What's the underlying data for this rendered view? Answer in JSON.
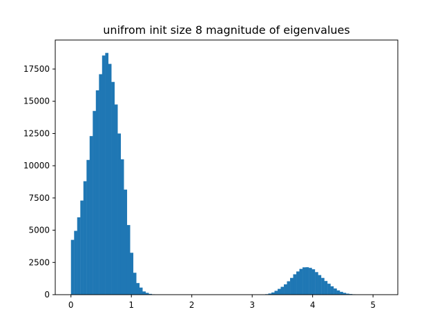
{
  "chart_data": {
    "type": "bar",
    "title": "unifrom init size 8 magnitude of eigenvalues",
    "xlabel": "",
    "ylabel": "",
    "xlim": [
      -0.26,
      5.41
    ],
    "ylim": [
      0,
      19750
    ],
    "grid": false,
    "bar_color": "#1f77b4",
    "bin_width": 0.0515,
    "x_ticks": [
      {
        "value": 0,
        "label": "0"
      },
      {
        "value": 1,
        "label": "1"
      },
      {
        "value": 2,
        "label": "2"
      },
      {
        "value": 3,
        "label": "3"
      },
      {
        "value": 4,
        "label": "4"
      },
      {
        "value": 5,
        "label": "5"
      }
    ],
    "y_ticks": [
      {
        "value": 0,
        "label": "0"
      },
      {
        "value": 2500,
        "label": "2500"
      },
      {
        "value": 5000,
        "label": "5000"
      },
      {
        "value": 7500,
        "label": "7500"
      },
      {
        "value": 10000,
        "label": "10000"
      },
      {
        "value": 12500,
        "label": "12500"
      },
      {
        "value": 15000,
        "label": "15000"
      },
      {
        "value": 17500,
        "label": "17500"
      }
    ],
    "bins_x": [
      0.0,
      0.052,
      0.103,
      0.155,
      0.206,
      0.258,
      0.309,
      0.361,
      0.412,
      0.464,
      0.515,
      0.567,
      0.618,
      0.67,
      0.721,
      0.773,
      0.824,
      0.876,
      0.927,
      0.979,
      1.03,
      1.082,
      1.133,
      1.185,
      1.236,
      1.288,
      1.339,
      1.391,
      3.163,
      3.215,
      3.266,
      3.318,
      3.369,
      3.421,
      3.472,
      3.524,
      3.575,
      3.627,
      3.678,
      3.73,
      3.781,
      3.833,
      3.884,
      3.936,
      3.987,
      4.039,
      4.09,
      4.142,
      4.193,
      4.245,
      4.296,
      4.348,
      4.399,
      4.451,
      4.502,
      4.554,
      4.605,
      4.657,
      4.708,
      4.76,
      4.811,
      4.863,
      4.914,
      4.966,
      5.017,
      5.069
    ],
    "bins_count": [
      4250,
      4950,
      6000,
      7300,
      8800,
      10450,
      12300,
      14250,
      15850,
      17100,
      18550,
      18750,
      17900,
      16500,
      14750,
      12500,
      10500,
      8150,
      5400,
      3250,
      1700,
      900,
      550,
      250,
      140,
      60,
      30,
      12,
      15,
      40,
      90,
      170,
      300,
      450,
      610,
      800,
      1040,
      1300,
      1580,
      1800,
      2000,
      2120,
      2130,
      2080,
      1970,
      1750,
      1520,
      1300,
      1060,
      850,
      650,
      480,
      330,
      220,
      140,
      80,
      50,
      30,
      18,
      10,
      6,
      3,
      2,
      1,
      1,
      1
    ]
  }
}
